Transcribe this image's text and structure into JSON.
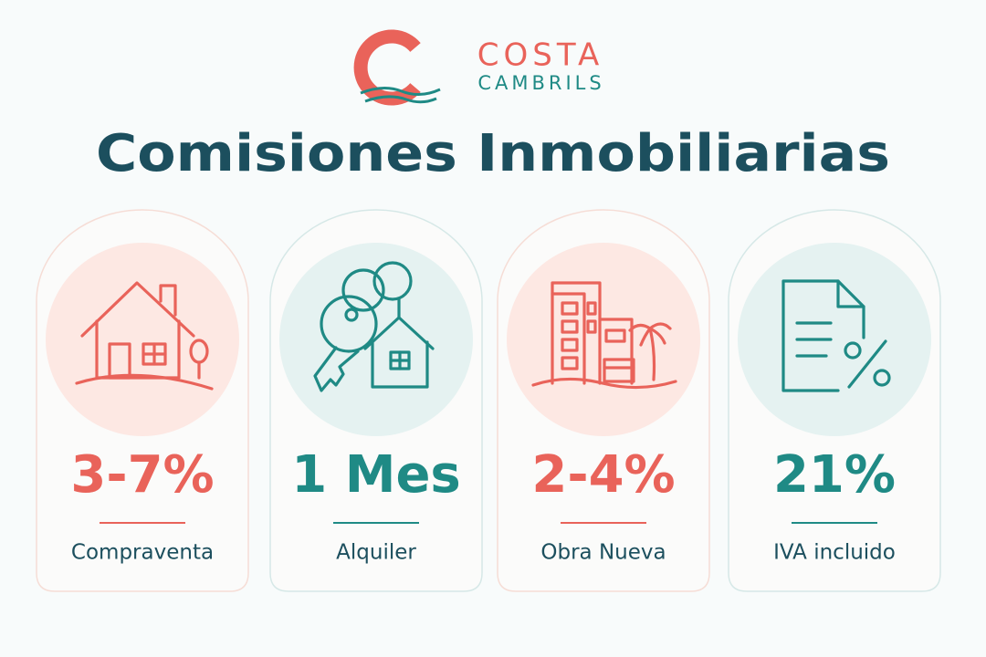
{
  "logo": {
    "name": "COSTA",
    "subname": "CAMBRILS"
  },
  "title": "Comisiones Inmobiliarias",
  "cards": [
    {
      "value": "3-7%",
      "label": "Compraventa"
    },
    {
      "value": "1 Mes",
      "label": "Alquiler"
    },
    {
      "value": "2-4%",
      "label": "Obra Nueva"
    },
    {
      "value": "21%",
      "label": "IVA incluido"
    }
  ]
}
